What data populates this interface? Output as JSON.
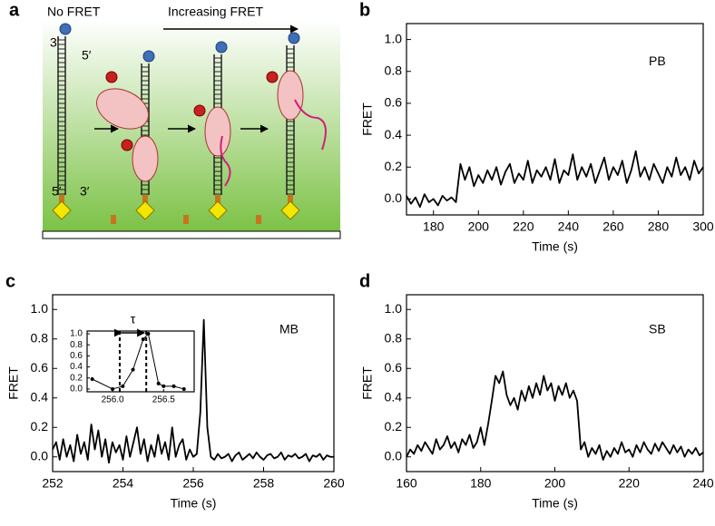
{
  "diagram": {
    "panel": "a",
    "left_label": "No FRET",
    "arrow_label": "Increasing FRET",
    "top_3": "3′",
    "top_5": "5′",
    "bottom_5": "5′",
    "bottom_3": "3′"
  },
  "chart_data": [
    {
      "type": "line",
      "panel": "b",
      "annotation": "PB",
      "xlabel": "Time (s)",
      "ylabel": "FRET",
      "color": "#000000",
      "x": [
        168,
        170,
        172,
        174,
        176,
        178,
        180,
        182,
        184,
        186,
        188,
        190,
        192,
        194,
        196,
        198,
        200,
        202,
        204,
        206,
        208,
        210,
        212,
        214,
        216,
        218,
        220,
        222,
        224,
        226,
        228,
        230,
        232,
        234,
        236,
        238,
        240,
        242,
        244,
        246,
        248,
        250,
        252,
        254,
        256,
        258,
        260,
        262,
        264,
        266,
        268,
        270,
        272,
        274,
        276,
        278,
        280,
        282,
        284,
        286,
        288,
        290,
        292,
        294,
        296,
        298,
        300
      ],
      "values": [
        0.02,
        -0.03,
        0.01,
        -0.05,
        0.03,
        -0.02,
        0.0,
        -0.04,
        0.02,
        -0.01,
        0.01,
        -0.02,
        0.22,
        0.12,
        0.2,
        0.08,
        0.15,
        0.1,
        0.18,
        0.12,
        0.2,
        0.09,
        0.17,
        0.22,
        0.1,
        0.16,
        0.12,
        0.24,
        0.1,
        0.18,
        0.14,
        0.2,
        0.12,
        0.25,
        0.1,
        0.18,
        0.15,
        0.28,
        0.12,
        0.2,
        0.14,
        0.22,
        0.1,
        0.18,
        0.26,
        0.12,
        0.2,
        0.15,
        0.24,
        0.1,
        0.18,
        0.3,
        0.14,
        0.2,
        0.12,
        0.22,
        0.16,
        0.1,
        0.2,
        0.14,
        0.26,
        0.15,
        0.2,
        0.12,
        0.24,
        0.16,
        0.2
      ],
      "xlim": [
        168,
        300
      ],
      "xticks": [
        180,
        200,
        220,
        240,
        260,
        280,
        300
      ],
      "ylim": [
        -0.1,
        1.1
      ],
      "yticks": [
        {
          "value": 0,
          "label": "0.0"
        },
        0.2,
        0.4,
        0.6,
        0.8,
        {
          "value": 1,
          "label": "1.0"
        }
      ]
    },
    {
      "type": "line",
      "panel": "c",
      "annotation": "MB",
      "xlabel": "Time (s)",
      "ylabel": "FRET",
      "color": "#000000",
      "x": [
        252,
        252.1,
        252.2,
        252.3,
        252.4,
        252.5,
        252.6,
        252.7,
        252.8,
        252.9,
        253,
        253.1,
        253.2,
        253.3,
        253.4,
        253.5,
        253.6,
        253.7,
        253.8,
        253.9,
        254,
        254.1,
        254.2,
        254.3,
        254.4,
        254.5,
        254.6,
        254.7,
        254.8,
        254.9,
        255,
        255.1,
        255.2,
        255.3,
        255.4,
        255.5,
        255.6,
        255.7,
        255.8,
        255.9,
        256,
        256.1,
        256.2,
        256.3,
        256.4,
        256.5,
        256.6,
        256.7,
        256.8,
        256.9,
        257,
        257.1,
        257.2,
        257.3,
        257.4,
        257.5,
        257.6,
        257.7,
        257.8,
        257.9,
        258,
        258.1,
        258.2,
        258.3,
        258.4,
        258.5,
        258.6,
        258.7,
        258.8,
        258.9,
        259,
        259.1,
        259.2,
        259.3,
        259.4,
        259.5,
        259.6,
        259.7,
        259.8,
        259.9,
        260
      ],
      "values": [
        0.05,
        0.1,
        -0.02,
        0.12,
        0.0,
        0.08,
        -0.03,
        0.15,
        0.02,
        0.1,
        -0.02,
        0.22,
        0.05,
        0.18,
        0.0,
        0.12,
        -0.04,
        0.1,
        0.03,
        0.08,
        -0.02,
        0.14,
        0.0,
        0.1,
        0.2,
        0.02,
        0.12,
        -0.03,
        0.08,
        0.0,
        0.15,
        0.02,
        0.1,
        -0.02,
        0.2,
        0.0,
        0.08,
        0.12,
        -0.02,
        0.05,
        0.0,
        0.02,
        0.3,
        0.93,
        0.2,
        0.0,
        -0.02,
        0.02,
        -0.01,
        0.0,
        0.02,
        -0.03,
        0.01,
        0.03,
        -0.02,
        0.0,
        0.02,
        -0.01,
        0.03,
        0.0,
        -0.02,
        0.01,
        0.02,
        -0.01,
        0.0,
        0.03,
        -0.02,
        0.01,
        0.0,
        0.02,
        -0.01,
        0.0,
        0.02,
        -0.03,
        0.01,
        0.0,
        0.02,
        -0.02,
        0.01,
        0.0,
        0.0
      ],
      "xlim": [
        252,
        260
      ],
      "xticks": [
        252,
        254,
        256,
        258,
        260
      ],
      "ylim": [
        -0.1,
        1.1
      ],
      "yticks": [
        {
          "value": 0,
          "label": "0.0"
        },
        0.2,
        0.4,
        0.6,
        0.8,
        {
          "value": 1,
          "label": "1.0"
        }
      ]
    },
    {
      "type": "line",
      "panel": "d",
      "annotation": "SB",
      "xlabel": "Time (s)",
      "ylabel": "FRET",
      "color": "#000000",
      "x": [
        160,
        161,
        162,
        163,
        164,
        165,
        166,
        167,
        168,
        169,
        170,
        171,
        172,
        173,
        174,
        175,
        176,
        177,
        178,
        179,
        180,
        181,
        182,
        183,
        184,
        185,
        186,
        187,
        188,
        189,
        190,
        191,
        192,
        193,
        194,
        195,
        196,
        197,
        198,
        199,
        200,
        201,
        202,
        203,
        204,
        205,
        206,
        207,
        208,
        209,
        210,
        211,
        212,
        213,
        214,
        215,
        216,
        217,
        218,
        219,
        220,
        221,
        222,
        223,
        224,
        225,
        226,
        227,
        228,
        229,
        230,
        231,
        232,
        233,
        234,
        235,
        236,
        237,
        238,
        239,
        240
      ],
      "values": [
        0.0,
        0.05,
        0.02,
        0.08,
        0.04,
        0.1,
        0.06,
        0.02,
        0.12,
        0.05,
        0.08,
        0.14,
        0.06,
        0.1,
        0.03,
        0.12,
        0.08,
        0.15,
        0.06,
        0.1,
        0.2,
        0.08,
        0.22,
        0.38,
        0.55,
        0.5,
        0.58,
        0.42,
        0.35,
        0.4,
        0.32,
        0.45,
        0.38,
        0.48,
        0.4,
        0.5,
        0.42,
        0.55,
        0.45,
        0.5,
        0.38,
        0.48,
        0.42,
        0.5,
        0.4,
        0.45,
        0.38,
        0.05,
        0.1,
        0.0,
        0.06,
        0.02,
        0.08,
        -0.02,
        0.04,
        0.0,
        0.06,
        0.02,
        0.1,
        0.03,
        0.05,
        0.0,
        0.08,
        0.03,
        0.1,
        0.05,
        0.02,
        0.09,
        0.04,
        0.1,
        0.06,
        0.02,
        0.08,
        0.03,
        0.07,
        0.0,
        0.05,
        0.02,
        0.06,
        0.01,
        0.03
      ],
      "xlim": [
        160,
        240
      ],
      "xticks": [
        160,
        180,
        200,
        220,
        240
      ],
      "ylim": [
        -0.1,
        1.1
      ],
      "yticks": [
        {
          "value": 0,
          "label": "0.0"
        },
        0.2,
        0.4,
        0.6,
        0.8,
        {
          "value": 1,
          "label": "1.0"
        }
      ]
    },
    {
      "type": "line",
      "inset": true,
      "markers": true,
      "annotation": "τ",
      "color": "#000000",
      "x": [
        255.8,
        256.0,
        256.1,
        256.2,
        256.3,
        256.35,
        256.45,
        256.5,
        256.6,
        256.7
      ],
      "values": [
        0.18,
        0.0,
        0.05,
        0.35,
        0.9,
        1.0,
        0.1,
        0.05,
        0.05,
        0.0
      ],
      "vlines": [
        256.07,
        256.33
      ],
      "xlim": [
        255.75,
        256.8
      ],
      "xticks": [
        {
          "value": 256,
          "label": "256.0"
        },
        256.5
      ],
      "ylim": [
        -0.05,
        1.05
      ],
      "yticks": [
        {
          "value": 0,
          "label": "0.0"
        },
        0.2,
        0.4,
        0.6,
        0.8,
        {
          "value": 1,
          "label": "1.0"
        }
      ]
    }
  ]
}
